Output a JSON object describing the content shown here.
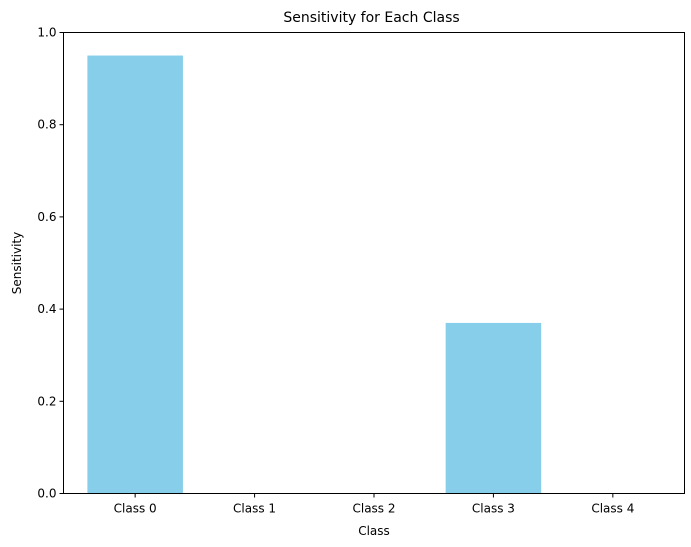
{
  "chart_data": {
    "type": "bar",
    "title": "Sensitivity for Each Class",
    "xlabel": "Class",
    "ylabel": "Sensitivity",
    "categories": [
      "Class 0",
      "Class 1",
      "Class 2",
      "Class 3",
      "Class 4"
    ],
    "values": [
      0.95,
      0.0,
      0.0,
      0.37,
      0.0
    ],
    "ylim": [
      0,
      1.0
    ],
    "yticks": [
      "0.0",
      "0.2",
      "0.4",
      "0.6",
      "0.8",
      "1.0"
    ],
    "bar_color": "#87CEEB",
    "grid": false
  }
}
